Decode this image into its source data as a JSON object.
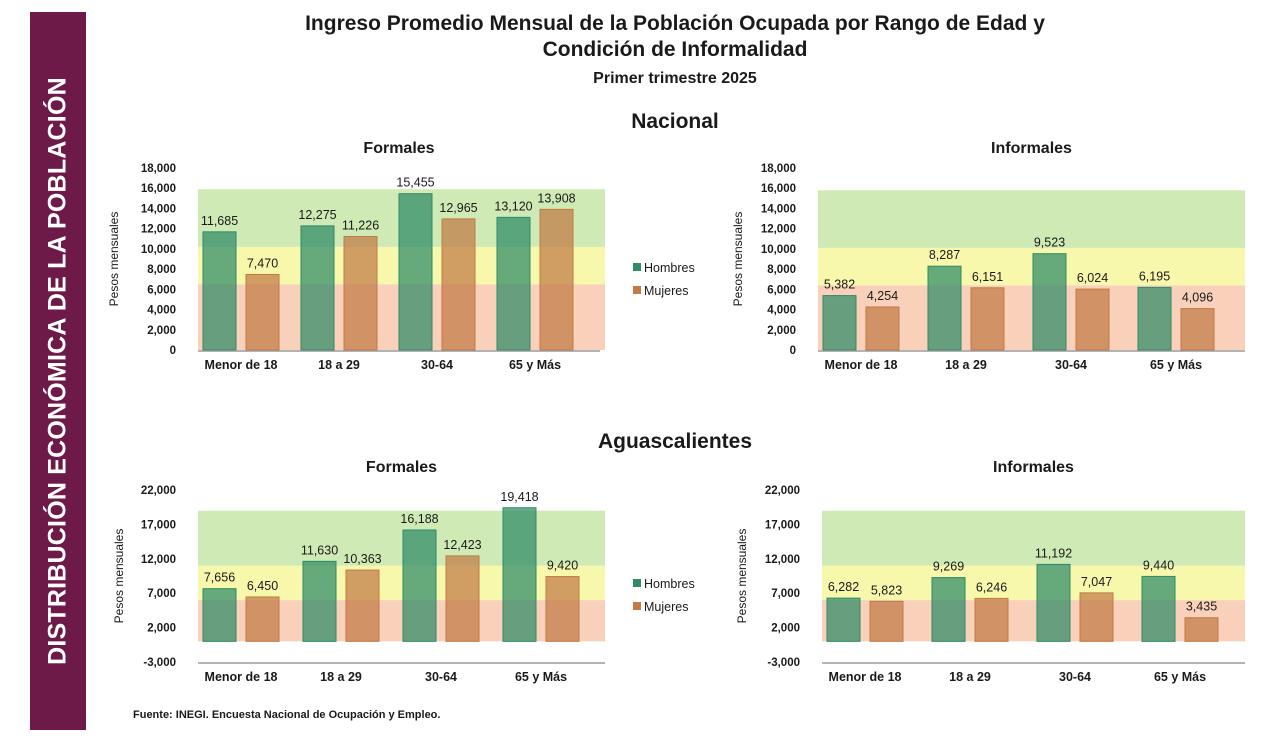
{
  "sidebar": {
    "text": "DISTRIBUCIÓN ECONÓMICA DE LA POBLACIÓN"
  },
  "title_line1": "Ingreso Promedio Mensual de la Población Ocupada por Rango de Edad y",
  "title_line2": "Condición de Informalidad",
  "subtitle": "Primer trimestre 2025",
  "sections": {
    "nacional": "Nacional",
    "aguascalientes": "Aguascalientes"
  },
  "footer": "Fuente: INEGI. Encuesta Nacional de Ocupación y Empleo.",
  "colors": {
    "hombres": "#2e8b66",
    "mujeres": "#c07a45",
    "band_green": "#c8e6a8",
    "band_yellow": "#f6f79c",
    "band_orange": "#f8c9ae",
    "sidebar": "#6e1a48"
  },
  "chart_data": [
    {
      "id": "nacional-formales",
      "type": "bar",
      "title": "Formales",
      "ylabel": "Pesos mensuales",
      "categories": [
        "Menor de 18",
        "18 a 29",
        "30-64",
        "65 y Más"
      ],
      "series": [
        {
          "name": "Hombres",
          "values": [
            11685,
            12275,
            15455,
            13120
          ]
        },
        {
          "name": "Mujeres",
          "values": [
            7470,
            11226,
            12965,
            13908
          ]
        }
      ],
      "value_labels": [
        [
          "11,685",
          "12,275",
          "15,455",
          "13,120"
        ],
        [
          "7,470",
          "11,226",
          "12,965",
          "13,908"
        ]
      ],
      "ylim": [
        0,
        18000
      ],
      "yticks": [
        0,
        2000,
        4000,
        6000,
        8000,
        10000,
        12000,
        14000,
        16000,
        18000
      ],
      "ytick_labels": [
        "0",
        "2,000",
        "4,000",
        "6,000",
        "8,000",
        "10,000",
        "12,000",
        "14,000",
        "16,000",
        "18,000"
      ],
      "bands": [
        {
          "from": 0,
          "to": 6500
        },
        {
          "from": 6500,
          "to": 10200
        },
        {
          "from": 10200,
          "to": 15900
        }
      ],
      "legend": "right"
    },
    {
      "id": "nacional-informales",
      "type": "bar",
      "title": "Informales",
      "ylabel": "Pesos mensuales",
      "categories": [
        "Menor de 18",
        "18 a 29",
        "30-64",
        "65 y Más"
      ],
      "series": [
        {
          "name": "Hombres",
          "values": [
            5382,
            8287,
            9523,
            6195
          ]
        },
        {
          "name": "Mujeres",
          "values": [
            4254,
            6151,
            6024,
            4096
          ]
        }
      ],
      "value_labels": [
        [
          "5,382",
          "8,287",
          "9,523",
          "6,195"
        ],
        [
          "4,254",
          "6,151",
          "6,024",
          "4,096"
        ]
      ],
      "ylim": [
        0,
        18000
      ],
      "yticks": [
        0,
        2000,
        4000,
        6000,
        8000,
        10000,
        12000,
        14000,
        16000,
        18000
      ],
      "ytick_labels": [
        "0",
        "2,000",
        "4,000",
        "6,000",
        "8,000",
        "10,000",
        "12,000",
        "14,000",
        "16,000",
        "18,000"
      ],
      "bands": [
        {
          "from": 0,
          "to": 6400
        },
        {
          "from": 6400,
          "to": 10100
        },
        {
          "from": 10100,
          "to": 15800
        }
      ],
      "legend": "none"
    },
    {
      "id": "ags-formales",
      "type": "bar",
      "title": "Formales",
      "ylabel": "Pesos mensuales",
      "categories": [
        "Menor de 18",
        "18 a 29",
        "30-64",
        "65 y Más"
      ],
      "series": [
        {
          "name": "Hombres",
          "values": [
            7656,
            11630,
            16188,
            19418
          ]
        },
        {
          "name": "Mujeres",
          "values": [
            6450,
            10363,
            12423,
            9420
          ]
        }
      ],
      "value_labels": [
        [
          "7,656",
          "11,630",
          "16,188",
          "19,418"
        ],
        [
          "6,450",
          "10,363",
          "12,423",
          "9,420"
        ]
      ],
      "ylim": [
        -3000,
        22000
      ],
      "yticks": [
        -3000,
        2000,
        7000,
        12000,
        17000,
        22000
      ],
      "ytick_labels": [
        "-3,000",
        "2,000",
        "7,000",
        "12,000",
        "17,000",
        "22,000"
      ],
      "bands": [
        {
          "from": 0,
          "to": 6000
        },
        {
          "from": 6000,
          "to": 11000
        },
        {
          "from": 11000,
          "to": 19000
        }
      ],
      "legend": "right"
    },
    {
      "id": "ags-informales",
      "type": "bar",
      "title": "Informales",
      "ylabel": "Pesos mensuales",
      "categories": [
        "Menor de 18",
        "18 a 29",
        "30-64",
        "65 y Más"
      ],
      "series": [
        {
          "name": "Hombres",
          "values": [
            6282,
            9269,
            11192,
            9440
          ]
        },
        {
          "name": "Mujeres",
          "values": [
            5823,
            6246,
            7047,
            3435
          ]
        }
      ],
      "value_labels": [
        [
          "6,282",
          "9,269",
          "11,192",
          "9,440"
        ],
        [
          "5,823",
          "6,246",
          "7,047",
          "3,435"
        ]
      ],
      "ylim": [
        -3000,
        22000
      ],
      "yticks": [
        -3000,
        2000,
        7000,
        12000,
        17000,
        22000
      ],
      "ytick_labels": [
        "-3,000",
        "2,000",
        "7,000",
        "12,000",
        "17,000",
        "22,000"
      ],
      "bands": [
        {
          "from": 0,
          "to": 6000
        },
        {
          "from": 6000,
          "to": 11000
        },
        {
          "from": 11000,
          "to": 19000
        }
      ],
      "legend": "none"
    }
  ]
}
